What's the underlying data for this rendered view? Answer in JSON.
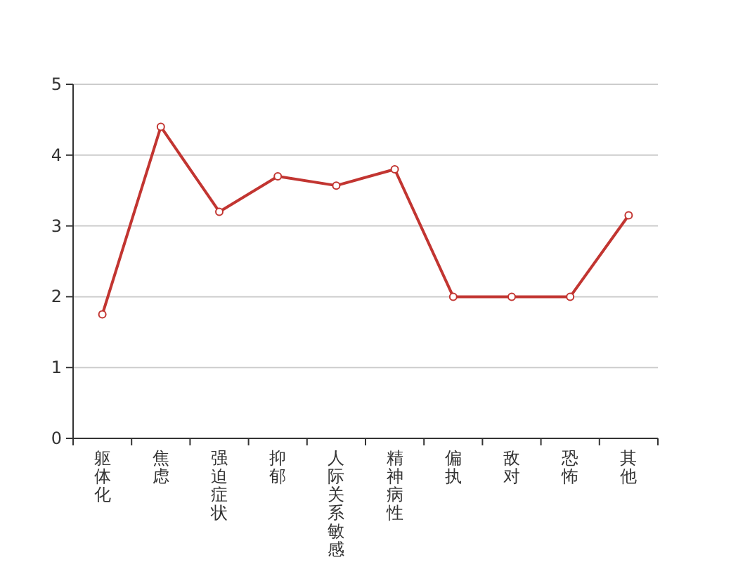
{
  "chart_data": {
    "type": "line",
    "categories": [
      "躯体化",
      "焦虑",
      "强迫症状",
      "抑郁",
      "人际关系敏感",
      "精神病性",
      "偏执",
      "敌对",
      "恐怖",
      "其他"
    ],
    "series": [
      {
        "color": "#c23531",
        "values": [
          1.75,
          4.4,
          3.2,
          3.7,
          3.57,
          3.8,
          2,
          2,
          2,
          3.15
        ]
      }
    ],
    "ylim": [
      0,
      5
    ],
    "yticks": [
      0,
      1,
      2,
      3,
      4,
      5
    ],
    "grid": "y",
    "marker": "circle"
  }
}
